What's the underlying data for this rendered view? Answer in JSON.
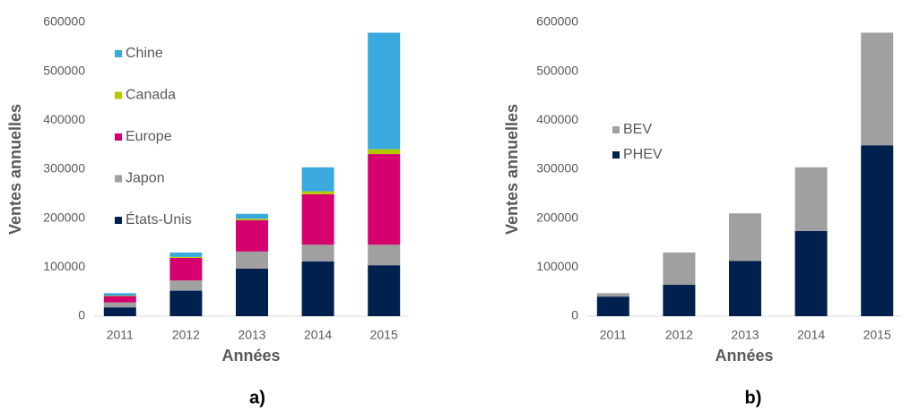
{
  "chart_data": [
    {
      "type": "stacked_bar",
      "caption": "a)",
      "xlabel": "Années",
      "ylabel": "Ventes annuelles",
      "categories": [
        "2011",
        "2012",
        "2013",
        "2014",
        "2015"
      ],
      "ylim": [
        0,
        600000
      ],
      "yticks": [
        0,
        100000,
        200000,
        300000,
        400000,
        500000,
        600000
      ],
      "legend": "upper left",
      "series": [
        {
          "name": "États-Unis",
          "color": "#00204e",
          "values": [
            18000,
            52000,
            97000,
            112000,
            104000
          ]
        },
        {
          "name": "Japon",
          "color": "#a0a0a0",
          "values": [
            10000,
            21000,
            35000,
            34000,
            42000
          ]
        },
        {
          "name": "Europe",
          "color": "#d6006f",
          "values": [
            13000,
            46000,
            64000,
            103000,
            185000
          ]
        },
        {
          "name": "Canada",
          "color": "#b5c800",
          "values": [
            1000,
            2000,
            3000,
            6000,
            10000
          ]
        },
        {
          "name": "Chine",
          "color": "#3aa9dd",
          "values": [
            5000,
            9000,
            10000,
            49000,
            238000
          ]
        }
      ]
    },
    {
      "type": "stacked_bar",
      "caption": "b)",
      "xlabel": "Années",
      "ylabel": "Ventes annuelles",
      "categories": [
        "2011",
        "2012",
        "2013",
        "2014",
        "2015"
      ],
      "ylim": [
        0,
        600000
      ],
      "yticks": [
        0,
        100000,
        200000,
        300000,
        400000,
        500000,
        600000
      ],
      "legend": "upper left",
      "series": [
        {
          "name": "PHEV",
          "color": "#00204e",
          "values": [
            40000,
            64000,
            113000,
            174000,
            349000
          ]
        },
        {
          "name": "BEV",
          "color": "#a0a0a0",
          "values": [
            7000,
            66000,
            97000,
            130000,
            230000
          ]
        }
      ]
    }
  ]
}
